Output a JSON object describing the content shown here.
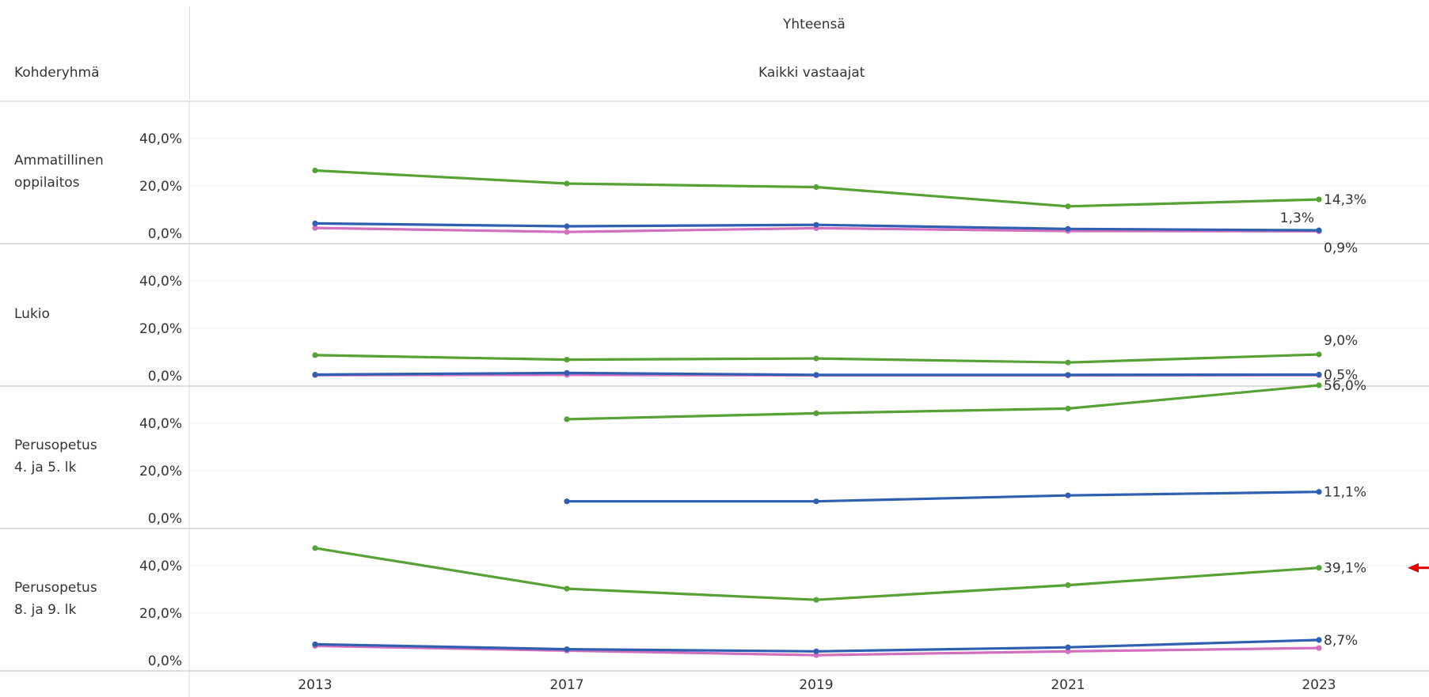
{
  "header": {
    "row_header": "Kohderyhmä",
    "column_group": "Yhteensä",
    "column_sub": "Kaikki vastaajat"
  },
  "colors": {
    "green": "#56a235",
    "blue": "#2f5fb3",
    "pink": "#d46fbd",
    "arrow": "#e00000"
  },
  "chart_data": {
    "type": "line",
    "categories": [
      "2013",
      "2017",
      "2019",
      "2021",
      "2023"
    ],
    "yticks": [
      "0,0%",
      "20,0%",
      "40,0%"
    ],
    "ylim": [
      0,
      60
    ],
    "panels": [
      {
        "label_lines": [
          "Ammatillinen",
          "oppilaitos"
        ],
        "series": [
          {
            "color": "green",
            "values": [
              26.5,
              21.0,
              19.5,
              11.4,
              14.3
            ]
          },
          {
            "color": "blue",
            "values": [
              4.2,
              3.0,
              3.6,
              1.9,
              1.3
            ]
          },
          {
            "color": "pink",
            "values": [
              2.3,
              0.6,
              2.2,
              1.0,
              0.9
            ]
          }
        ],
        "end_labels": [
          {
            "text": "14,3%",
            "value": 14.3
          },
          {
            "text": "1,3%",
            "value": 1.3,
            "left": true
          },
          {
            "text": "0,9%",
            "value": 0.9
          }
        ]
      },
      {
        "label_lines": [
          "Lukio"
        ],
        "series": [
          {
            "color": "green",
            "values": [
              8.7,
              6.8,
              7.3,
              5.6,
              9.0
            ]
          },
          {
            "color": "blue",
            "values": [
              0.5,
              1.2,
              0.4,
              0.4,
              0.5
            ]
          },
          {
            "color": "pink",
            "values": [
              0.3,
              0.4,
              0.2,
              0.2,
              0.3
            ]
          }
        ],
        "end_labels": [
          {
            "text": "9,0%",
            "value": 9.0
          },
          {
            "text": "0,5%",
            "value": 0.5
          }
        ]
      },
      {
        "label_lines": [
          "Perusopetus",
          "4. ja 5. lk"
        ],
        "series": [
          {
            "color": "green",
            "values": [
              null,
              41.7,
              44.2,
              46.2,
              56.0
            ]
          },
          {
            "color": "blue",
            "values": [
              null,
              7.1,
              7.1,
              9.6,
              11.1
            ]
          }
        ],
        "end_labels": [
          {
            "text": "56,0%",
            "value": 56.0
          },
          {
            "text": "11,1%",
            "value": 11.1
          }
        ]
      },
      {
        "label_lines": [
          "Perusopetus",
          "8. ja 9. lk"
        ],
        "series": [
          {
            "color": "green",
            "values": [
              47.4,
              30.3,
              25.6,
              31.8,
              39.1
            ]
          },
          {
            "color": "blue",
            "values": [
              6.9,
              4.8,
              3.9,
              5.6,
              8.7
            ]
          },
          {
            "color": "pink",
            "values": [
              6.2,
              4.2,
              2.3,
              3.9,
              5.3
            ]
          }
        ],
        "end_labels": [
          {
            "text": "39,1%",
            "value": 39.1
          },
          {
            "text": "8,7%",
            "value": 8.7
          }
        ],
        "highlight_arrow": true
      }
    ]
  }
}
